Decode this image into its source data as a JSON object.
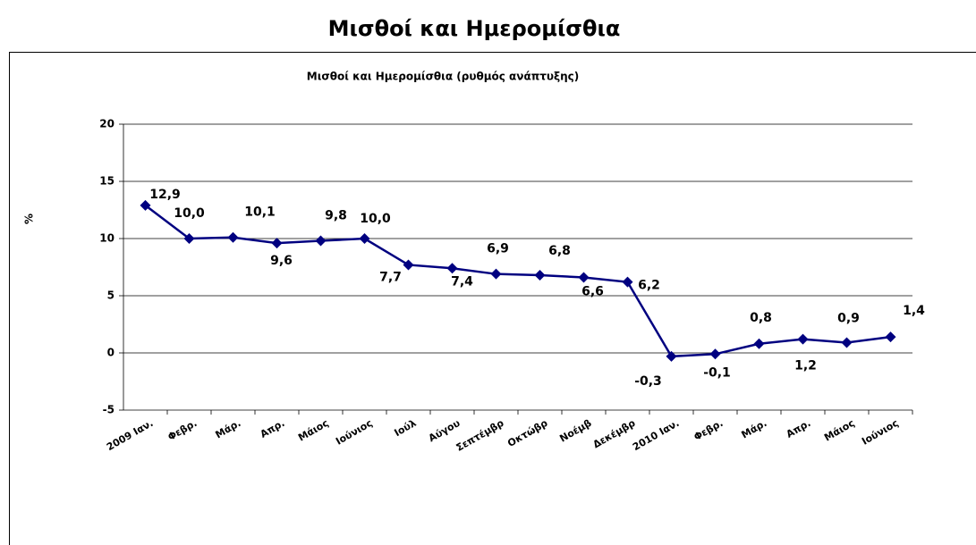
{
  "header": {
    "title": "Μισθοί και Ημερομίσθια"
  },
  "chart_data": {
    "type": "line",
    "title": "Μισθοί και Ημερομίσθια (ρυθμός ανάπτυξης)",
    "y_label": "%",
    "categories": [
      "2009 Ιαν.",
      "Φεβρ.",
      "Μάρ.",
      "Απρ.",
      "Μάιος",
      "Ιούνιος",
      "Ιούλ",
      "Αύγου",
      "Σεπτέμβρ",
      "Οκτώβρ",
      "Νοέμβ",
      "Δεκέμβρ",
      "2010 Ιαν.",
      "Φεβρ.",
      "Μάρ.",
      "Απρ.",
      "Μάιος",
      "Ιούνιος"
    ],
    "values": [
      12.9,
      10.0,
      10.1,
      9.6,
      9.8,
      10.0,
      7.7,
      7.4,
      6.9,
      6.8,
      6.6,
      6.2,
      -0.3,
      -0.1,
      0.8,
      1.2,
      0.9,
      1.4
    ],
    "value_labels": [
      "12,9",
      "10,0",
      "10,1",
      "9,6",
      "9,8",
      "10,0",
      "7,7",
      "7,4",
      "6,9",
      "6,8",
      "6,6",
      "6,2",
      "-0,3",
      "-0,1",
      "0,8",
      "1,2",
      "0,9",
      "1,4"
    ],
    "color": "#000080",
    "ylim": [
      -5,
      20
    ],
    "yticks": [
      -5,
      0,
      5,
      10,
      15,
      20
    ],
    "grid": true
  }
}
